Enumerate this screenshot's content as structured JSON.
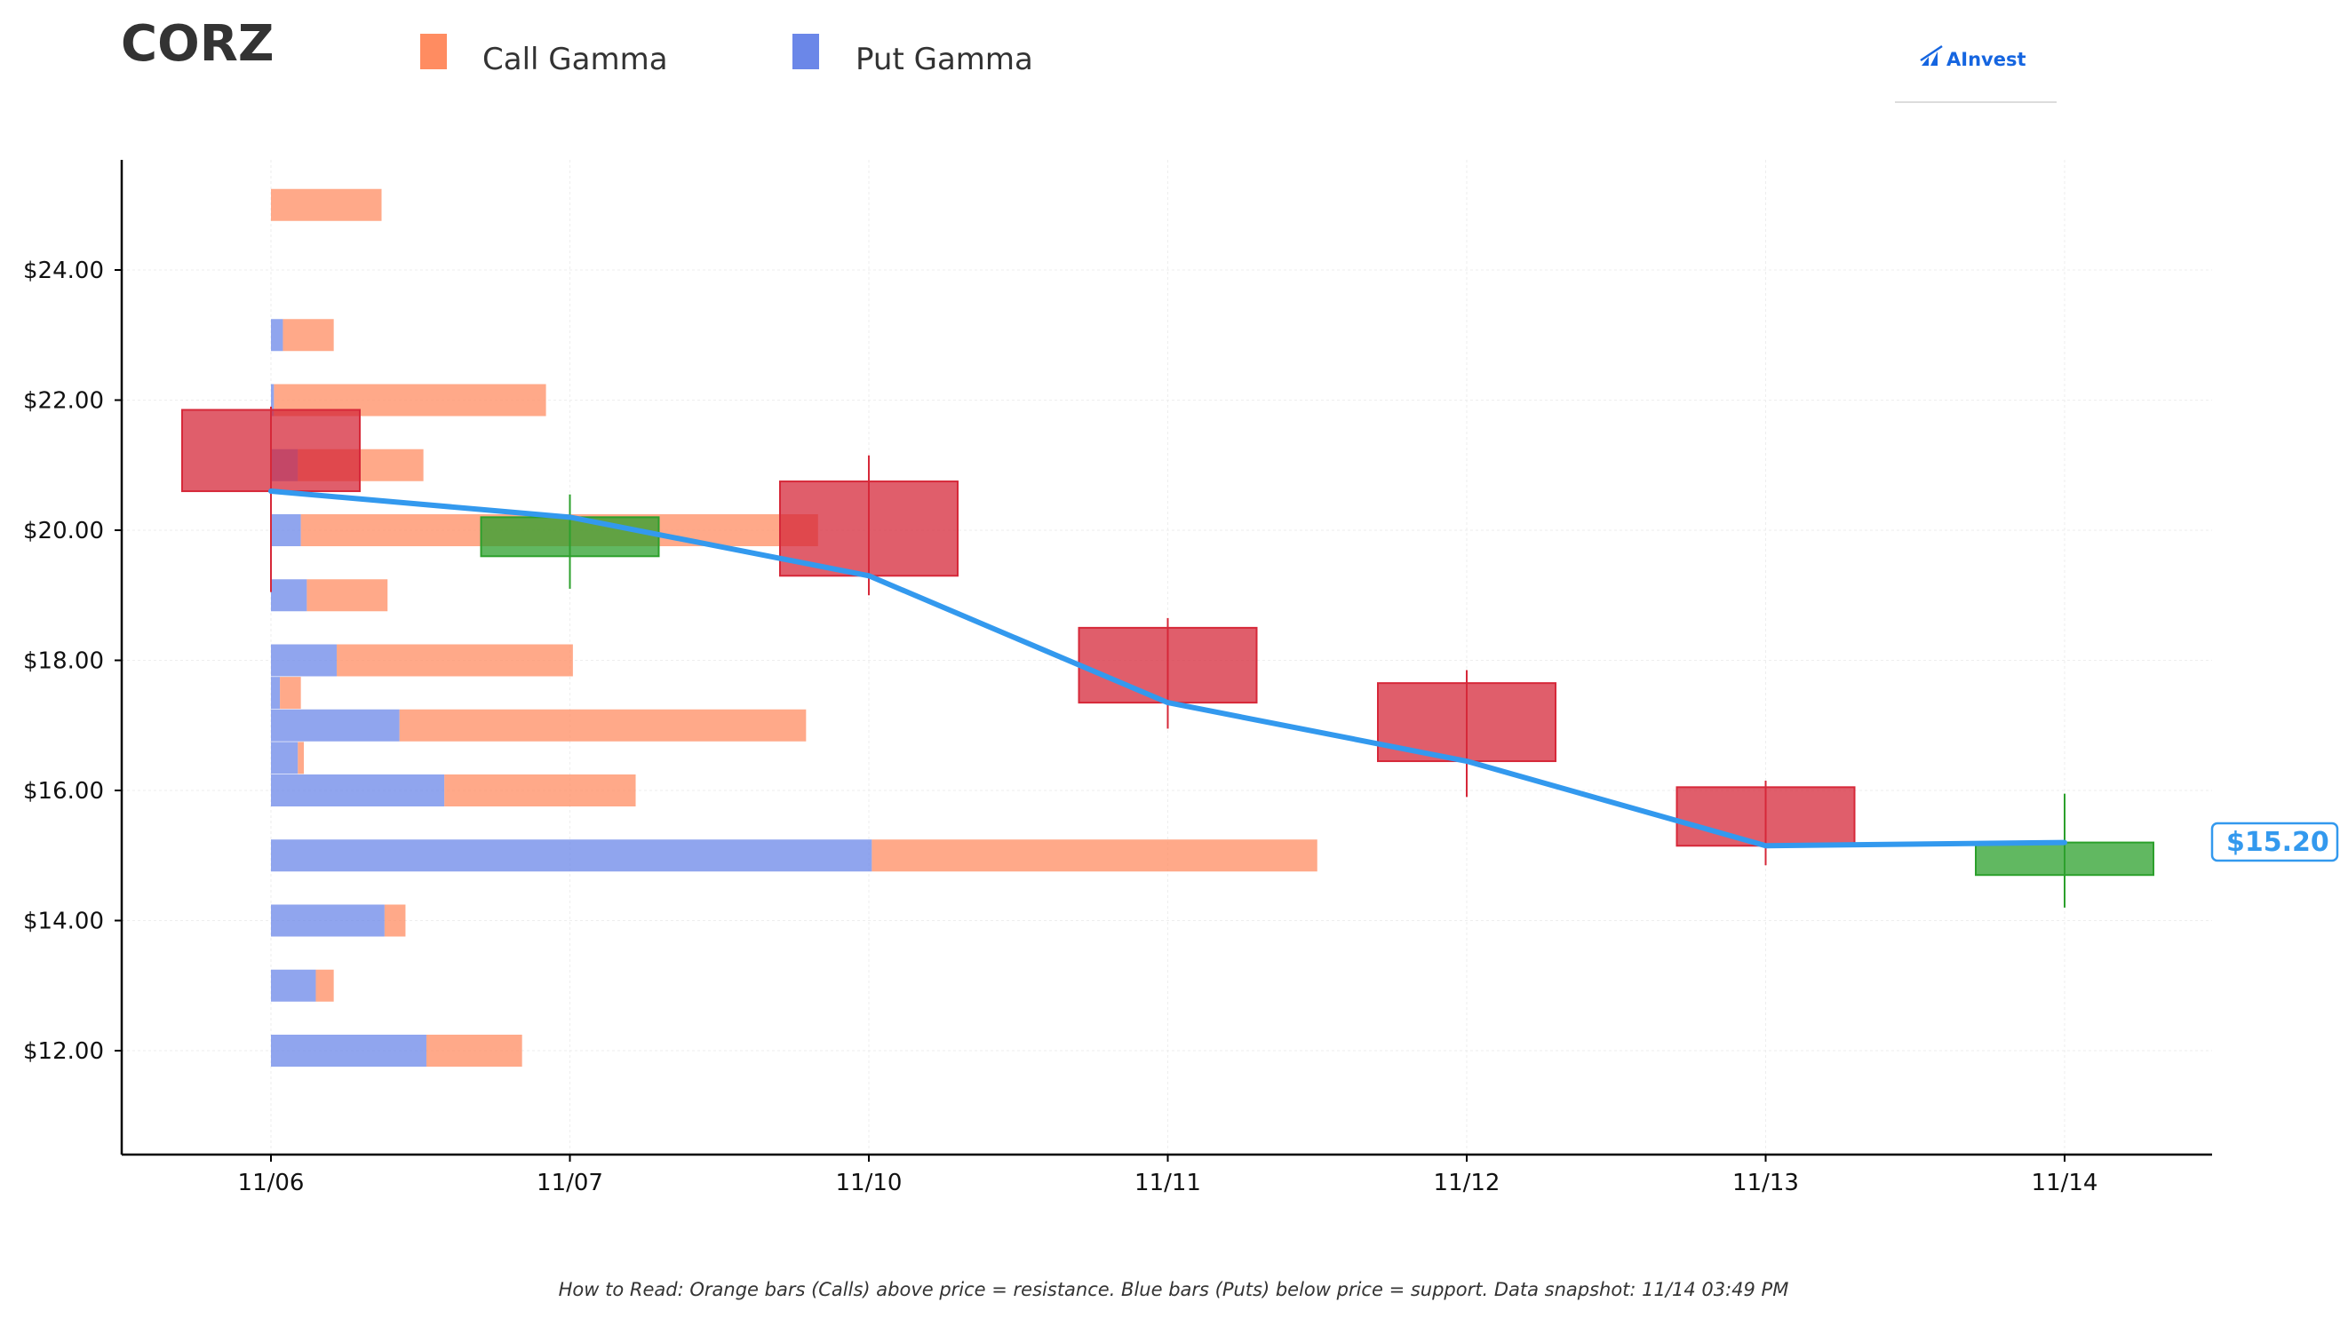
{
  "chart_data": {
    "type": "candlestick-gamma",
    "title": "CORZ",
    "legend": [
      {
        "name": "Call Gamma",
        "color": "#ff8c61"
      },
      {
        "name": "Put Gamma",
        "color": "#6b87e8"
      }
    ],
    "legend_placement": "top",
    "categories": [
      "11/06",
      "11/07",
      "11/10",
      "11/11",
      "11/12",
      "11/13",
      "11/14"
    ],
    "ylim": [
      10.4,
      25.7
    ],
    "yticks": [
      12,
      14,
      16,
      18,
      20,
      22,
      24
    ],
    "ytick_labels": [
      "$12.00",
      "$14.00",
      "$16.00",
      "$18.00",
      "$20.00",
      "$22.00",
      "$24.00"
    ],
    "grid": true,
    "candles": [
      {
        "date": "11/06",
        "open": 21.85,
        "close": 20.6,
        "high": 21.9,
        "low": 19.05
      },
      {
        "date": "11/07",
        "open": 19.6,
        "close": 20.2,
        "high": 20.55,
        "low": 19.1
      },
      {
        "date": "11/10",
        "open": 20.75,
        "close": 19.3,
        "high": 21.15,
        "low": 19.0
      },
      {
        "date": "11/11",
        "open": 18.5,
        "close": 17.35,
        "high": 18.65,
        "low": 16.95
      },
      {
        "date": "11/12",
        "open": 17.65,
        "close": 16.45,
        "high": 17.85,
        "low": 15.9
      },
      {
        "date": "11/13",
        "open": 16.05,
        "close": 15.15,
        "high": 16.15,
        "low": 14.85
      },
      {
        "date": "11/14",
        "open": 14.7,
        "close": 15.2,
        "high": 15.95,
        "low": 14.2
      }
    ],
    "close_line": [
      20.6,
      20.2,
      19.3,
      17.35,
      16.45,
      15.15,
      15.2
    ],
    "gamma_bars": [
      {
        "strike": 25.0,
        "put": 0.0,
        "call": 0.37
      },
      {
        "strike": 23.0,
        "put": 0.04,
        "call": 0.17
      },
      {
        "strike": 22.0,
        "put": 0.01,
        "call": 0.91
      },
      {
        "strike": 21.0,
        "put": 0.09,
        "call": 0.42
      },
      {
        "strike": 20.0,
        "put": 0.1,
        "call": 1.73
      },
      {
        "strike": 19.0,
        "put": 0.12,
        "call": 0.27
      },
      {
        "strike": 18.0,
        "put": 0.22,
        "call": 0.79
      },
      {
        "strike": 17.5,
        "put": 0.03,
        "call": 0.07
      },
      {
        "strike": 17.0,
        "put": 0.43,
        "call": 1.36
      },
      {
        "strike": 16.5,
        "put": 0.09,
        "call": 0.02
      },
      {
        "strike": 16.0,
        "put": 0.58,
        "call": 0.64
      },
      {
        "strike": 15.0,
        "put": 2.01,
        "call": 1.49
      },
      {
        "strike": 14.0,
        "put": 0.38,
        "call": 0.07
      },
      {
        "strike": 13.0,
        "put": 0.15,
        "call": 0.06
      },
      {
        "strike": 12.0,
        "put": 0.52,
        "call": 0.32
      }
    ],
    "current_price": 15.2,
    "current_price_label": "$15.20",
    "colors": {
      "up": "#2ca02c",
      "down": "#d62839",
      "close_line": "#3399ee",
      "call": "#ff8c61",
      "put": "#6b87e8"
    }
  },
  "branding": {
    "logo_text": "AInvest"
  },
  "footnote": "How to Read: Orange bars (Calls) above price = resistance. Blue bars (Puts) below price = support. Data snapshot: 11/14 03:49 PM"
}
